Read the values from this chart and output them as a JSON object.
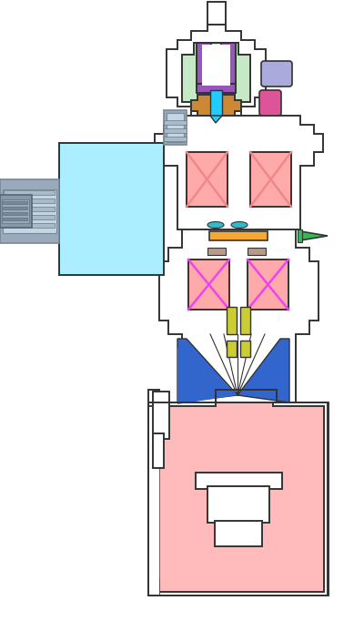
{
  "bg_color": "#ffffff",
  "oc": "#333333",
  "lw": 1.4,
  "colors": {
    "light_green": "#c5e8c5",
    "purple": "#9955bb",
    "cyan_bright": "#22ccff",
    "orange_brown": "#cc8833",
    "blue_side": "#9999dd",
    "pink_red": "#f08888",
    "magenta": "#ee44ee",
    "green": "#33bb55",
    "orange": "#f5a833",
    "yellow_green": "#cccc33",
    "cyan_box": "#aaeeff",
    "pink_fill": "#ffbbbb",
    "steel_gray": "#9aaabb",
    "steel_dark": "#778899",
    "blue_beam": "#3366cc",
    "teal": "#33bbcc",
    "salmon": "#ffaaaa",
    "magenta_box": "#ee55ee",
    "pink_side": "#cc5599",
    "white": "#ffffff"
  }
}
